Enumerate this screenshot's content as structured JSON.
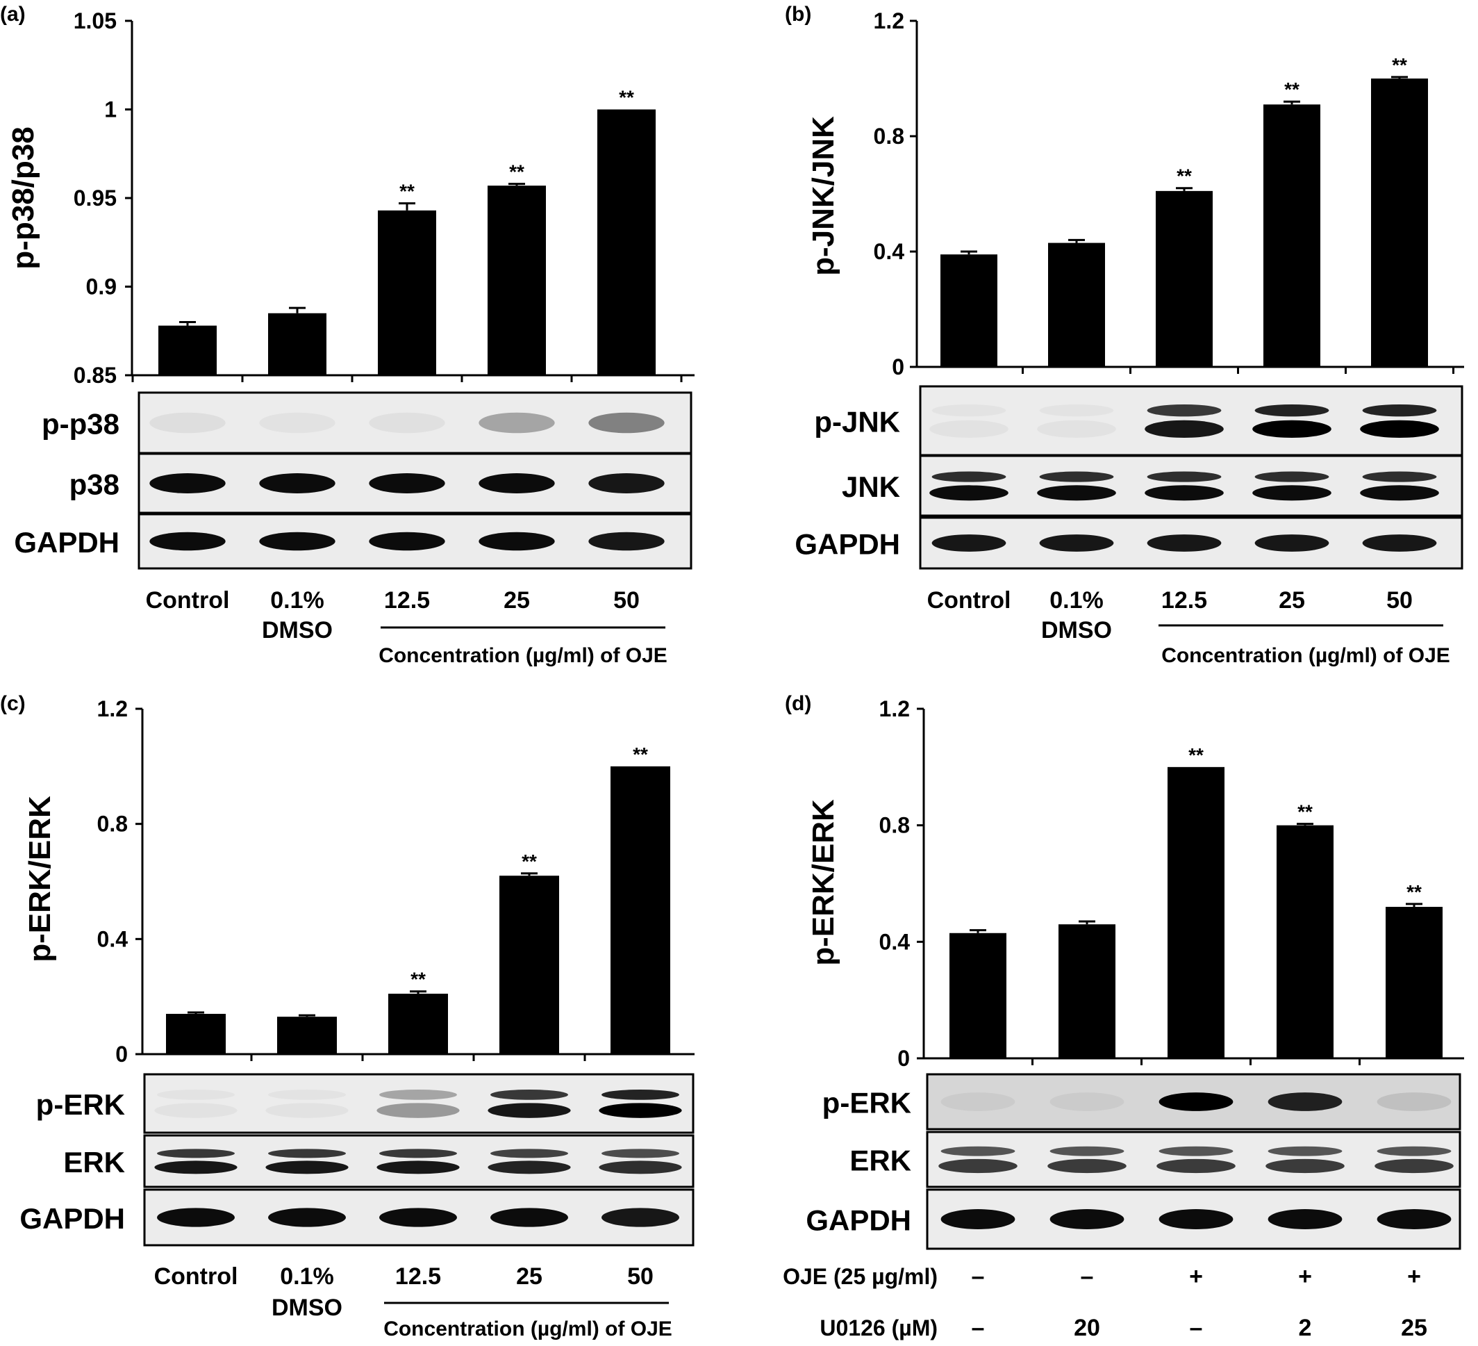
{
  "chart_data": [
    {
      "panel_label": "(a)",
      "type": "bar",
      "ylabel": "p-p38/p38",
      "ylim": [
        0.85,
        1.05
      ],
      "yticks": [
        "0.85",
        "0.9",
        "0.95",
        "1",
        "1.05"
      ],
      "categories": [
        "Control",
        "0.1%",
        "12.5",
        "25",
        "50"
      ],
      "category_sublabels": [
        "",
        "DMSO",
        "",
        "",
        ""
      ],
      "values": [
        0.878,
        0.885,
        0.943,
        0.957,
        1.0
      ],
      "errors": [
        0.002,
        0.003,
        0.004,
        0.001,
        0.0
      ],
      "significance": [
        "",
        "",
        "**",
        "**",
        "**"
      ],
      "group_label": "Concentration (µg/ml) of OJE",
      "blots": [
        {
          "label": "p-p38",
          "intensity": [
            0.06,
            0.04,
            0.05,
            0.3,
            0.45
          ],
          "double": false
        },
        {
          "label": "p38",
          "intensity": [
            0.95,
            0.95,
            0.95,
            0.95,
            0.9
          ],
          "double": false
        },
        {
          "label": "GAPDH",
          "intensity": [
            0.95,
            0.95,
            0.95,
            0.95,
            0.9
          ],
          "double": false
        }
      ]
    },
    {
      "panel_label": "(b)",
      "type": "bar",
      "ylabel": "p-JNK/JNK",
      "ylim": [
        0,
        1.2
      ],
      "yticks": [
        "0",
        "0.4",
        "0.8",
        "1.2"
      ],
      "categories": [
        "Control",
        "0.1%",
        "12.5",
        "25",
        "50"
      ],
      "category_sublabels": [
        "",
        "DMSO",
        "",
        "",
        ""
      ],
      "values": [
        0.39,
        0.43,
        0.61,
        0.91,
        1.0
      ],
      "errors": [
        0.01,
        0.01,
        0.01,
        0.01,
        0.005
      ],
      "significance": [
        "",
        "",
        "**",
        "**",
        "**"
      ],
      "group_label": "Concentration (µg/ml) of OJE",
      "blots": [
        {
          "label": "p-JNK",
          "intensity": [
            0.02,
            0.02,
            0.9,
            1.0,
            1.0
          ],
          "double": true
        },
        {
          "label": "JNK",
          "intensity": [
            0.95,
            0.95,
            0.95,
            0.95,
            0.95
          ],
          "double": true
        },
        {
          "label": "GAPDH",
          "intensity": [
            0.9,
            0.9,
            0.9,
            0.9,
            0.9
          ],
          "double": false
        }
      ]
    },
    {
      "panel_label": "(c)",
      "type": "bar",
      "ylabel": "p-ERK/ERK",
      "ylim": [
        0,
        1.2
      ],
      "yticks": [
        "0",
        "0.4",
        "0.8",
        "1.2"
      ],
      "categories": [
        "Control",
        "0.1%",
        "12.5",
        "25",
        "50"
      ],
      "category_sublabels": [
        "",
        "DMSO",
        "",
        "",
        ""
      ],
      "values": [
        0.14,
        0.13,
        0.21,
        0.62,
        1.0
      ],
      "errors": [
        0.005,
        0.005,
        0.008,
        0.008,
        0.0
      ],
      "significance": [
        "",
        "",
        "**",
        "**",
        "**"
      ],
      "group_label": "Concentration (µg/ml) of OJE",
      "blots": [
        {
          "label": "p-ERK",
          "intensity": [
            0.02,
            0.02,
            0.35,
            0.9,
            1.0
          ],
          "double": true
        },
        {
          "label": "ERK",
          "intensity": [
            0.9,
            0.9,
            0.9,
            0.85,
            0.8
          ],
          "double": true
        },
        {
          "label": "GAPDH",
          "intensity": [
            0.95,
            0.95,
            0.95,
            0.95,
            0.9
          ],
          "double": false
        }
      ]
    },
    {
      "panel_label": "(d)",
      "type": "bar",
      "ylabel": "p-ERK/ERK",
      "ylim": [
        0,
        1.2
      ],
      "yticks": [
        "0",
        "0.4",
        "0.8",
        "1.2"
      ],
      "categories": [
        "",
        "",
        "",
        "",
        ""
      ],
      "values": [
        0.43,
        0.46,
        1.0,
        0.8,
        0.52
      ],
      "errors": [
        0.01,
        0.01,
        0.0,
        0.005,
        0.01
      ],
      "significance": [
        "",
        "",
        "**",
        "**",
        "**"
      ],
      "treatment_rows": [
        {
          "label": "OJE (25 µg/ml)",
          "values": [
            "–",
            "–",
            "+",
            "+",
            "+"
          ]
        },
        {
          "label": "U0126 (µM)",
          "values": [
            "–",
            "20",
            "–",
            "2",
            "25"
          ]
        }
      ],
      "blots": [
        {
          "label": "p-ERK",
          "intensity": [
            0.05,
            0.05,
            1.0,
            0.85,
            0.1
          ],
          "double": false
        },
        {
          "label": "ERK",
          "intensity": [
            0.75,
            0.75,
            0.75,
            0.75,
            0.75
          ],
          "double": true
        },
        {
          "label": "GAPDH",
          "intensity": [
            0.95,
            0.95,
            0.95,
            0.95,
            0.95
          ],
          "double": false
        }
      ]
    }
  ]
}
